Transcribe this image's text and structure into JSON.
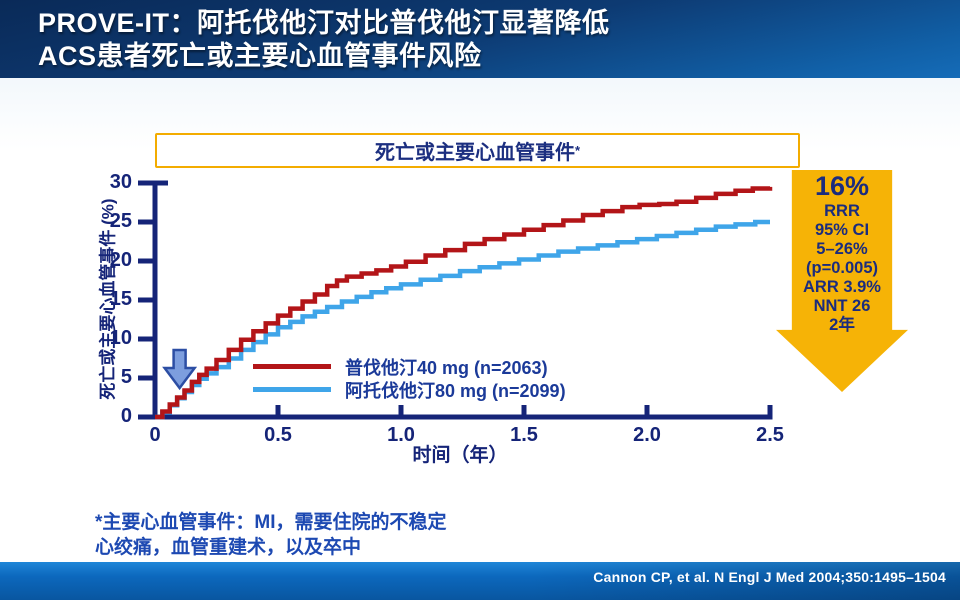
{
  "header": {
    "title_line1": "PROVE-IT：阿托伐他汀对比普伐他汀显著降低",
    "title_line2": "ACS患者死亡或主要心血管事件风险"
  },
  "chart_data": {
    "type": "line",
    "subtype": "kaplan-meier-step",
    "title": "死亡或主要心血管事件",
    "title_asterisk": "*",
    "xlabel": "时间（年）",
    "ylabel": "死亡或主要心血管事件 (%)",
    "xlim": [
      0,
      2.5
    ],
    "ylim": [
      0,
      30
    ],
    "x_ticks": [
      0,
      0.5,
      1.0,
      1.5,
      2.0,
      2.5
    ],
    "x_tick_labels": [
      "0",
      "0.5",
      "1.0",
      "1.5",
      "2.0",
      "2.5"
    ],
    "y_ticks": [
      0,
      5,
      10,
      15,
      20,
      25,
      30
    ],
    "y_tick_labels": [
      "0",
      "5",
      "10",
      "15",
      "20",
      "25",
      "30"
    ],
    "grid": false,
    "legend_position": "inside-lower-right",
    "axis_color": "#152478",
    "series": [
      {
        "name": "普伐他汀40 mg (n=2063)",
        "color": "#b31518",
        "points": [
          [
            0,
            0
          ],
          [
            0.03,
            0.7
          ],
          [
            0.06,
            1.6
          ],
          [
            0.09,
            2.5
          ],
          [
            0.12,
            3.4
          ],
          [
            0.15,
            4.5
          ],
          [
            0.18,
            5.4
          ],
          [
            0.21,
            6.2
          ],
          [
            0.25,
            7.3
          ],
          [
            0.3,
            8.6
          ],
          [
            0.35,
            9.9
          ],
          [
            0.4,
            11
          ],
          [
            0.45,
            12
          ],
          [
            0.5,
            13
          ],
          [
            0.55,
            13.9
          ],
          [
            0.6,
            14.8
          ],
          [
            0.65,
            15.7
          ],
          [
            0.7,
            16.8
          ],
          [
            0.74,
            17.5
          ],
          [
            0.78,
            18
          ],
          [
            0.84,
            18.4
          ],
          [
            0.9,
            18.8
          ],
          [
            0.96,
            19.3
          ],
          [
            1.02,
            19.9
          ],
          [
            1.1,
            20.7
          ],
          [
            1.18,
            21.4
          ],
          [
            1.26,
            22.2
          ],
          [
            1.34,
            22.8
          ],
          [
            1.42,
            23.4
          ],
          [
            1.5,
            24
          ],
          [
            1.58,
            24.6
          ],
          [
            1.66,
            25.2
          ],
          [
            1.74,
            25.9
          ],
          [
            1.82,
            26.4
          ],
          [
            1.9,
            26.9
          ],
          [
            1.97,
            27.2
          ],
          [
            2.05,
            27.3
          ],
          [
            2.12,
            27.6
          ],
          [
            2.2,
            28.1
          ],
          [
            2.28,
            28.6
          ],
          [
            2.36,
            29
          ],
          [
            2.43,
            29.3
          ],
          [
            2.5,
            29.5
          ]
        ]
      },
      {
        "name": "阿托伐他汀80 mg (n=2099)",
        "color": "#3fa5e9",
        "points": [
          [
            0,
            0
          ],
          [
            0.03,
            0.6
          ],
          [
            0.06,
            1.5
          ],
          [
            0.09,
            2.4
          ],
          [
            0.12,
            3.2
          ],
          [
            0.15,
            4.1
          ],
          [
            0.18,
            4.9
          ],
          [
            0.21,
            5.6
          ],
          [
            0.25,
            6.4
          ],
          [
            0.3,
            7.5
          ],
          [
            0.35,
            8.6
          ],
          [
            0.4,
            9.6
          ],
          [
            0.45,
            10.6
          ],
          [
            0.5,
            11.5
          ],
          [
            0.55,
            12.2
          ],
          [
            0.6,
            12.9
          ],
          [
            0.65,
            13.5
          ],
          [
            0.7,
            14.1
          ],
          [
            0.76,
            14.8
          ],
          [
            0.82,
            15.4
          ],
          [
            0.88,
            16
          ],
          [
            0.94,
            16.5
          ],
          [
            1,
            17
          ],
          [
            1.08,
            17.6
          ],
          [
            1.16,
            18.1
          ],
          [
            1.24,
            18.7
          ],
          [
            1.32,
            19.2
          ],
          [
            1.4,
            19.7
          ],
          [
            1.48,
            20.2
          ],
          [
            1.56,
            20.7
          ],
          [
            1.64,
            21.2
          ],
          [
            1.72,
            21.6
          ],
          [
            1.8,
            22
          ],
          [
            1.88,
            22.4
          ],
          [
            1.96,
            22.8
          ],
          [
            2.04,
            23.2
          ],
          [
            2.12,
            23.6
          ],
          [
            2.2,
            24
          ],
          [
            2.28,
            24.4
          ],
          [
            2.36,
            24.7
          ],
          [
            2.44,
            25
          ],
          [
            2.5,
            25
          ]
        ]
      }
    ],
    "annotation_arrow": {
      "at_year": 0.1,
      "fill": "#7d9ede",
      "stroke": "#2c4ea4"
    }
  },
  "result_arrow": {
    "fill_color": "#f6b306",
    "text_color": "#1b2c7e",
    "headline": "16%",
    "lines": [
      "RRR",
      "95% CI",
      "5–26%",
      "(p=0.005)",
      "ARR 3.9%",
      "NNT 26",
      "2年"
    ]
  },
  "footnote": {
    "line1": "*主要心血管事件：MI，需要住院的不稳定",
    "line2": "心绞痛，血管重建术，以及卒中"
  },
  "footer": {
    "citation": "Cannon CP, et al. N Engl J Med 2004;350:1495–1504"
  }
}
